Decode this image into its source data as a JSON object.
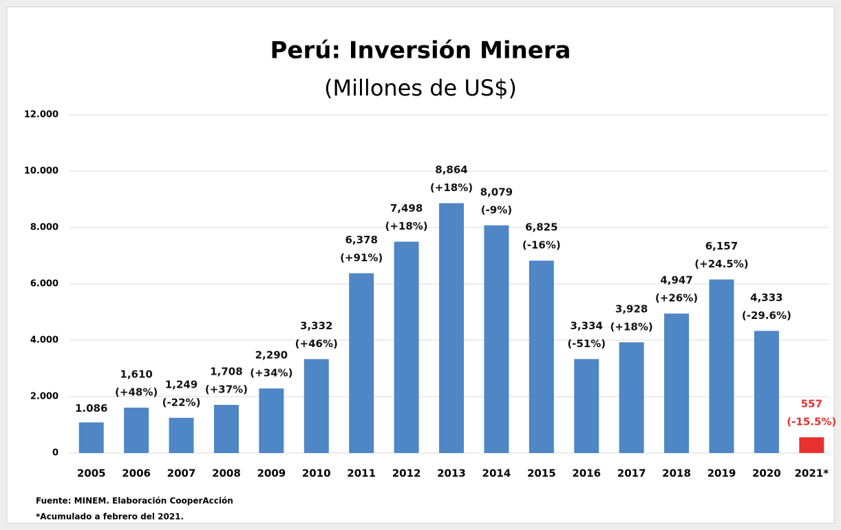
{
  "chart_data": {
    "type": "bar",
    "title": "Perú: Inversión Minera",
    "subtitle": "(Millones de US$)",
    "categories": [
      "2005",
      "2006",
      "2007",
      "2008",
      "2009",
      "2010",
      "2011",
      "2012",
      "2013",
      "2014",
      "2015",
      "2016",
      "2017",
      "2018",
      "2019",
      "2020",
      "2021*"
    ],
    "values": [
      1086,
      1610,
      1249,
      1708,
      2290,
      3332,
      6378,
      7498,
      8864,
      8079,
      6825,
      3334,
      3928,
      4947,
      6157,
      4333,
      557
    ],
    "value_labels": [
      "1.086",
      "1,610",
      "1,249",
      "1,708",
      "2,290",
      "3,332",
      "6,378",
      "7,498",
      "8,864",
      "8,079",
      "6,825",
      "3,334",
      "3,928",
      "4,947",
      "6,157",
      "4,333",
      "557"
    ],
    "change_labels": [
      null,
      "(+48%)",
      "(-22%)",
      "(+37%)",
      "(+34%)",
      "(+46%)",
      "(+91%)",
      "(+18%)",
      "(+18%)",
      "(-9%)",
      "(-16%)",
      "(-51%)",
      "(+18%)",
      "(+26%)",
      "(+24.5%)",
      "(-29.6%)",
      "(-15.5%)"
    ],
    "colors": [
      "#4f86c6",
      "#4f86c6",
      "#4f86c6",
      "#4f86c6",
      "#4f86c6",
      "#4f86c6",
      "#4f86c6",
      "#4f86c6",
      "#4f86c6",
      "#4f86c6",
      "#4f86c6",
      "#4f86c6",
      "#4f86c6",
      "#4f86c6",
      "#4f86c6",
      "#4f86c6",
      "#e8302e"
    ],
    "label_colors": [
      "#111",
      "#111",
      "#111",
      "#111",
      "#111",
      "#111",
      "#111",
      "#111",
      "#111",
      "#111",
      "#111",
      "#111",
      "#111",
      "#111",
      "#111",
      "#111",
      "#e8302e"
    ],
    "ylim": [
      0,
      12000
    ],
    "yticks": [
      0,
      {
        "value": 2000,
        "label": "2.000"
      },
      {
        "value": 4000,
        "label": "4.000"
      },
      {
        "value": 6000,
        "label": "6.000"
      },
      {
        "value": 8000,
        "label": "8.000"
      },
      {
        "value": 10000,
        "label": "10.000"
      },
      {
        "value": 12000,
        "label": "12.000"
      }
    ],
    "grid": true,
    "notes": [
      "Fuente:  MINEM. Elaboración CooperAcción",
      "*Acumulado a febrero del 2021."
    ]
  }
}
